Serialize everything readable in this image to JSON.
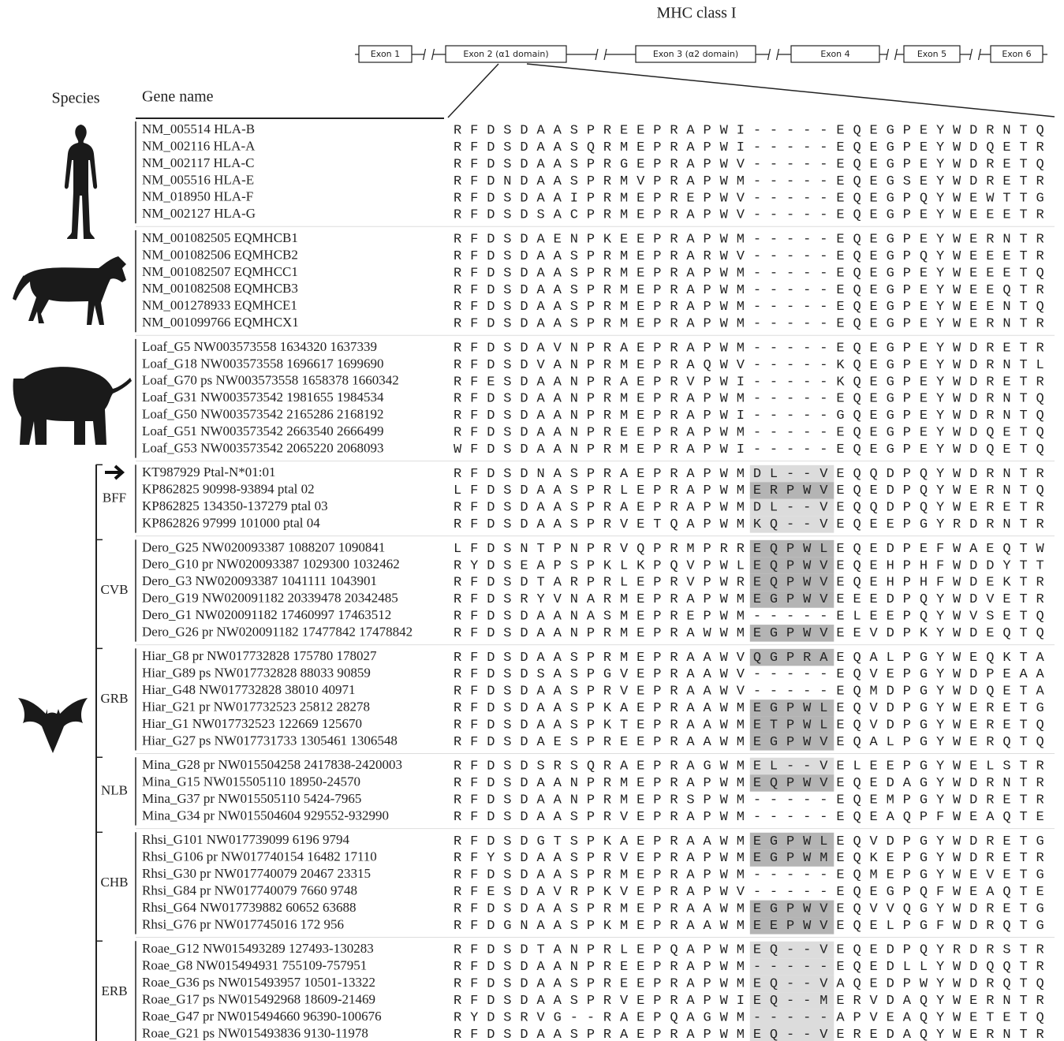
{
  "title": "MHC class I",
  "exons": [
    "Exon 1",
    "Exon 2 (α1 domain)",
    "Exon 3 (α2 domain)",
    "Exon 4",
    "Exon 5",
    "Exon 6"
  ],
  "headers": {
    "species": "Species",
    "gene_name": "Gene name"
  },
  "groups": [
    {
      "rows": [
        {
          "gene": "NM_005514 HLA-B",
          "sequence": "RFDSDAASPREEPRAPWI-----EQEGPEYWDRNTQ"
        },
        {
          "gene": "NM_002116 HLA-A",
          "sequence": "RFDSDAASQRMEPRAPWI-----EQEGPEYWDQETR"
        },
        {
          "gene": "NM_002117 HLA-C",
          "sequence": "RFDSDAASPRGEPRAPWV-----EQEGPEYWDRETQ"
        },
        {
          "gene": "NM_005516 HLA-E",
          "sequence": "RFDNDAASPRMVPRAPWM-----EQEGSEYWDRETR"
        },
        {
          "gene": "NM_018950 HLA-F",
          "sequence": "RFDSDAAIPRMEPREPWV-----EQEGPQYWEWTTG"
        },
        {
          "gene": "NM_002127 HLA-G",
          "sequence": "RFDSDSACPRMEPRAPWV-----EQEGPEYWEEETR"
        }
      ]
    },
    {
      "rows": [
        {
          "gene": "NM_001082505 EQMHCB1",
          "sequence": "RFDSDAENPKEEPRAPWM-----EQEGPEYWERNTR"
        },
        {
          "gene": "NM_001082506 EQMHCB2",
          "sequence": "RFDSDAASPRMEPRARWV-----EQEGPQYWEEETR"
        },
        {
          "gene": "NM_001082507 EQMHCC1",
          "sequence": "RFDSDAASPRMEPRAPWM-----EQEGPEYWEEETQ"
        },
        {
          "gene": "NM_001082508 EQMHCB3",
          "sequence": "RFDSDAASPRMEPRAPWM-----EQEGPEYWEEQTR"
        },
        {
          "gene": "NM_001278933 EQMHCE1",
          "sequence": "RFDSDAASPRMEPRAPWM-----EQEGPEYWEENTQ"
        },
        {
          "gene": "NM_001099766 EQMHCX1",
          "sequence": "RFDSDAASPRMEPRAPWM-----EQEGPEYWERNTR"
        }
      ]
    },
    {
      "rows": [
        {
          "gene": "Loaf_G5 NW003573558 1634320 1637339",
          "sequence": "RFDSDAVNPRAEPRAPWM-----EQEGPEYWDRETR"
        },
        {
          "gene": "Loaf_G18 NW003573558 1696617 1699690",
          "sequence": "RFDSDVANPRMEPRAQWV-----KQEGPEYWDRNTL"
        },
        {
          "gene": "Loaf_G70 ps NW003573558 1658378 1660342",
          "sequence": "RFESDAANPRAEPRVPWI-----KQEGPEYWDRETR"
        },
        {
          "gene": "Loaf_G31 NW003573542 1981655 1984534",
          "sequence": "RFDSDAANPRMEPRAPWM-----EQEGPEYWDRNTQ"
        },
        {
          "gene": "Loaf_G50 NW003573542 2165286 2168192",
          "sequence": "RFDSDAANPRMEPRAPWI-----GQEGPEYWDRNTQ"
        },
        {
          "gene": "Loaf_G51 NW003573542 2663540 2666499",
          "sequence": "RFDSDAANPREEPRAPWM-----EQEGPEYWDQETQ"
        },
        {
          "gene": "Loaf_G53 NW003573542 2065220 2068093",
          "sequence": "WFDSDAANPRMEPRAPWI-----EQEGPEYWDQETQ"
        }
      ]
    },
    {
      "label": "BFF",
      "rows": [
        {
          "gene": "KT987929 Ptal-N*01:01",
          "sequence": "RFDSDNASPRAEPRAPWMDL--VEQQDPQYWDRNTR",
          "highlight": "#dcdcdc"
        },
        {
          "gene": "KP862825 90998-93894 ptal 02",
          "sequence": "LFDSDAASPRLEPRAPWMERPWVEQEDPQYWERNTQ",
          "highlight": "#b4b4b4"
        },
        {
          "gene": "KP862825 134350-137279 ptal 03",
          "sequence": "RFDSDAASPRAEPRAPWMDL--VEQQDPQYWERETR",
          "highlight": "#dcdcdc"
        },
        {
          "gene": "KP862826 97999 101000 ptal 04",
          "sequence": "RFDSDAASPRVETQAPWMKQ--VEQEEPGYRDRNTR",
          "highlight": "#dcdcdc"
        }
      ]
    },
    {
      "label": "CVB",
      "rows": [
        {
          "gene": "Dero_G25 NW020093387 1088207 1090841",
          "sequence": "LFDSNTPNPRVQPRMPRREQPWLEQEDPEFWAEQTW",
          "highlight": "#b4b4b4"
        },
        {
          "gene": "Dero_G10 pr NW020093387 1029300 1032462",
          "sequence": "RYDSEAPSPKLKPQVPWLEQPWVEQEHPHFWDDYTT",
          "highlight": "#b4b4b4"
        },
        {
          "gene": "Dero_G3 NW020093387 1041111 1043901",
          "sequence": "RFDSDTARPRLEPRVPWREQPWVEQEHPHFWDEKTR",
          "highlight": "#b4b4b4"
        },
        {
          "gene": "Dero_G19 NW020091182 20339478 20342485",
          "sequence": "RFDSRYVNARMEPRAPWMEGPWVEEEDPQYWDVETR",
          "highlight": "#b4b4b4"
        },
        {
          "gene": "Dero_G1 NW020091182 17460997 17463512",
          "sequence": "RFDSDAANASMEPREPWM-----ELEEPQYWVSETQ"
        },
        {
          "gene": "Dero_G26 pr NW020091182 17477842 17478842",
          "sequence": "RFDSDAANPRMEPRAWWMEGPWVEEVDPKYWDEQTQ",
          "highlight": "#b4b4b4"
        }
      ]
    },
    {
      "label": "GRB",
      "rows": [
        {
          "gene": "Hiar_G8 pr NW017732828 175780 178027",
          "sequence": "RFDSDAASPRMEPRAAWVQGPRAEQALPGYWEQKTA",
          "highlight": "#b4b4b4"
        },
        {
          "gene": "Hiar_G89 ps NW017732828 88033 90859",
          "sequence": "RFDSDSASPGVEPRAAWV-----EQVEPGYWDPEAA"
        },
        {
          "gene": "Hiar_G48 NW017732828 38010 40971",
          "sequence": "RFDSDAASPRVEPRAAWV-----EQMDPGYWDQETA"
        },
        {
          "gene": "Hiar_G21 pr NW017732523 25812 28278",
          "sequence": "RFDSDAASPKAEPRAAWMEGPWLEQVDPGYWERETG",
          "highlight": "#b4b4b4"
        },
        {
          "gene": "Hiar_G1 NW017732523 122669 125670",
          "sequence": "RFDSDAASPKTEPRAAWMETPWLEQVDPGYWERETQ",
          "highlight": "#b4b4b4"
        },
        {
          "gene": "Hiar_G27 ps NW017731733 1305461 1306548",
          "sequence": "RFDSDAESPREEPRAAWMEGPWVEQALPGYWERQTQ",
          "highlight": "#b4b4b4"
        }
      ]
    },
    {
      "label": "NLB",
      "rows": [
        {
          "gene": "Mina_G28 pr NW015504258 2417838-2420003",
          "sequence": "RFDSDSRSQRAEPRAGWMEL--VELEEPGYWELSTR",
          "highlight": "#dcdcdc"
        },
        {
          "gene": "Mina_G15 NW015505110 18950-24570",
          "sequence": "RFDSDAANPRMEPRAPWMEQPWVEQEDAGYWDRNTR",
          "highlight": "#b4b4b4"
        },
        {
          "gene": "Mina_G37 pr NW015505110 5424-7965",
          "sequence": "RFDSDAANPRMEPRSPWM-----EQEMPGYWDRETR"
        },
        {
          "gene": "Mina_G34 pr NW015504604 929552-932990",
          "sequence": "RFDSDAASPRVEPRAPWM-----EQEAQPFWEAQTE"
        }
      ]
    },
    {
      "label": "CHB",
      "rows": [
        {
          "gene": "Rhsi_G101 NW017739099 6196 9794",
          "sequence": "RFDSDGTSPKAEPRAAWMEGPWLEQVDPGYWDRETG",
          "highlight": "#b4b4b4"
        },
        {
          "gene": "Rhsi_G106 pr NW017740154 16482 17110",
          "sequence": "RFYSDAASPRVEPRAPWMEGPWMEQKEPGYWDRETR",
          "highlight": "#b4b4b4"
        },
        {
          "gene": "Rhsi_G30 pr NW017740079 20467 23315",
          "sequence": "RFDSDAASPRMEPRAPWM-----EQMEPGYWEVETG"
        },
        {
          "gene": "Rhsi_G84 pr NW017740079 7660 9748",
          "sequence": "RFESDAVRPKVEPRAPWV-----EQEGPQFWEAQTE"
        },
        {
          "gene": "Rhsi_G64 NW017739882 60652 63688",
          "sequence": "RFDSDAASPRMEPRAAWMEGPWVEQVVQGYWDRETG",
          "highlight": "#b4b4b4"
        },
        {
          "gene": "Rhsi_G76 pr NW017745016 172 956",
          "sequence": "RFDGNAASPKMEPRAAWMEEPWVEQELPGFWDRQTG",
          "highlight": "#b4b4b4"
        }
      ]
    },
    {
      "label": "ERB",
      "rows": [
        {
          "gene": "Roae_G12 NW015493289 127493-130283",
          "sequence": "RFDSDTANPRLEPQAPWMEQ--VEQEDPQYRDRSTR",
          "highlight": "#dcdcdc"
        },
        {
          "gene": "Roae_G8 NW015494931 755109-757951",
          "sequence": "RFDSDAANPREEPRAPWM-----EQEDLLYWDQQTR",
          "highlight": "#dcdcdc"
        },
        {
          "gene": "Roae_G36 ps NW015493957 10501-13322",
          "sequence": "RFDSDAASPREEPRAPWMEQ--VAQEDPWYWDRQTQ",
          "highlight": "#dcdcdc"
        },
        {
          "gene": "Roae_G17 ps NW015492968 18609-21469",
          "sequence": "RFDSDAASPRVEPRAPWIEQ--MERVDAQYWERNTR",
          "highlight": "#dcdcdc"
        },
        {
          "gene": "Roae_G47 pr NW015494660 96390-100676",
          "sequence": "RYDSRVG--RAEPQAGWM-----APVEAQYWETETQ",
          "highlight": "#dcdcdc"
        },
        {
          "gene": "Roae_G21 ps NW015493836 9130-11978",
          "sequence": "RFDSDAASPRAEPRAPWMEQ--VEREDAQYWERNTR",
          "highlight": "#dcdcdc"
        }
      ]
    }
  ]
}
